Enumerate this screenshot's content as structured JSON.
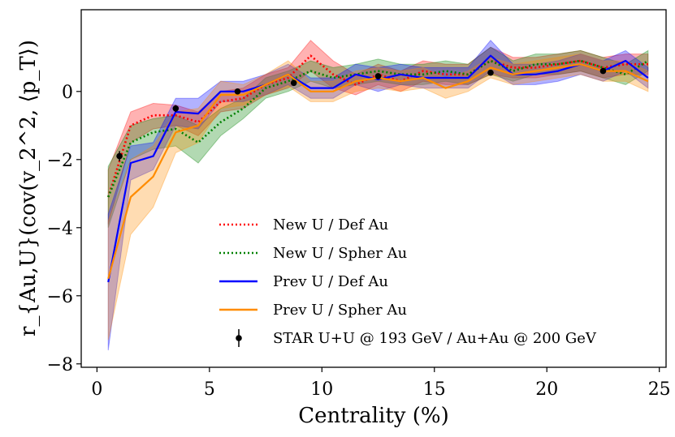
{
  "chart_data": {
    "type": "line",
    "title": "",
    "xlabel": "Centrality (%)",
    "ylabel": "r_{Au,U}(cov(v_2^2, ⟨p_T⟩)",
    "xlim": [
      -0.7,
      25.3
    ],
    "ylim": [
      -8.1,
      2.4
    ],
    "xticks": [
      0,
      5,
      10,
      15,
      20,
      25
    ],
    "xtick_labels": [
      "0",
      "5",
      "10",
      "15",
      "20",
      "25"
    ],
    "yticks": [
      -8,
      -6,
      -4,
      -2,
      0
    ],
    "ytick_labels": [
      "−8",
      "−6",
      "−4",
      "−2",
      "0"
    ],
    "grid": false,
    "legend_position": "bottom-center",
    "x": [
      0.5,
      1.5,
      2.5,
      3.5,
      4.5,
      5.5,
      6.5,
      7.5,
      8.5,
      9.5,
      10.5,
      11.5,
      12.5,
      13.5,
      14.5,
      15.5,
      16.5,
      17.5,
      18.5,
      19.5,
      20.5,
      21.5,
      22.5,
      23.5,
      24.5
    ],
    "series": [
      {
        "name": "New U / Def Au",
        "color": "#ff0000",
        "style": "dotted",
        "values": [
          -3.1,
          -1.0,
          -0.7,
          -0.7,
          -0.9,
          -0.3,
          -0.2,
          0.2,
          0.4,
          1.05,
          0.5,
          0.2,
          0.5,
          0.3,
          0.6,
          0.5,
          0.5,
          0.9,
          0.7,
          0.7,
          0.8,
          0.9,
          0.7,
          0.8,
          0.8
        ],
        "lower": [
          -3.9,
          -1.5,
          -1.1,
          -1.0,
          -1.3,
          -0.6,
          -0.5,
          -0.1,
          0.1,
          0.6,
          0.1,
          -0.1,
          0.2,
          0.0,
          0.3,
          0.2,
          0.2,
          0.5,
          0.4,
          0.4,
          0.5,
          0.6,
          0.4,
          0.5,
          0.5
        ],
        "upper": [
          -2.3,
          -0.6,
          -0.35,
          -0.4,
          -0.6,
          0.0,
          0.1,
          0.5,
          0.7,
          1.5,
          0.9,
          0.5,
          0.8,
          0.6,
          0.9,
          0.8,
          0.8,
          1.3,
          1.0,
          1.0,
          1.1,
          1.2,
          1.0,
          1.1,
          1.1
        ]
      },
      {
        "name": "New U / Spher Au",
        "color": "#008000",
        "style": "dotted",
        "values": [
          -3.1,
          -1.5,
          -1.2,
          -1.1,
          -1.5,
          -0.9,
          -0.5,
          0.1,
          0.3,
          0.6,
          0.4,
          0.5,
          0.6,
          0.5,
          0.5,
          0.6,
          0.5,
          0.9,
          0.6,
          0.8,
          0.8,
          0.9,
          0.7,
          0.5,
          0.9
        ],
        "lower": [
          -4.0,
          -2.0,
          -1.7,
          -1.6,
          -2.1,
          -1.3,
          -0.8,
          -0.2,
          0.0,
          0.3,
          0.1,
          0.2,
          0.3,
          0.2,
          0.2,
          0.3,
          0.2,
          0.5,
          0.3,
          0.5,
          0.5,
          0.6,
          0.4,
          0.2,
          0.6
        ],
        "upper": [
          -2.2,
          -1.0,
          -0.8,
          -0.7,
          -1.0,
          -0.5,
          -0.2,
          0.4,
          0.6,
          0.9,
          0.7,
          0.8,
          0.95,
          0.8,
          0.8,
          0.9,
          0.8,
          1.3,
          0.9,
          1.1,
          1.1,
          1.2,
          1.0,
          0.8,
          1.2
        ]
      },
      {
        "name": "Prev U / Def Au",
        "color": "#0000ff",
        "style": "solid",
        "values": [
          -5.6,
          -2.1,
          -1.9,
          -0.6,
          -0.65,
          0.0,
          0.0,
          0.2,
          0.5,
          0.1,
          0.1,
          0.5,
          0.35,
          0.5,
          0.4,
          0.4,
          0.4,
          1.05,
          0.5,
          0.5,
          0.6,
          0.8,
          0.6,
          0.9,
          0.4
        ],
        "lower": [
          -7.6,
          -2.6,
          -2.3,
          -1.0,
          -1.1,
          -0.3,
          -0.3,
          -0.1,
          0.2,
          -0.2,
          -0.2,
          0.2,
          0.0,
          0.2,
          0.1,
          0.1,
          0.1,
          0.6,
          0.2,
          0.2,
          0.3,
          0.5,
          0.3,
          0.6,
          0.1
        ],
        "upper": [
          -3.6,
          -1.6,
          -1.5,
          -0.2,
          -0.2,
          0.3,
          0.3,
          0.5,
          0.8,
          0.4,
          0.4,
          0.8,
          0.7,
          0.8,
          0.7,
          0.7,
          0.7,
          1.5,
          0.8,
          0.8,
          0.9,
          1.1,
          0.9,
          1.2,
          0.7
        ]
      },
      {
        "name": "Prev U / Spher Au",
        "color": "#ff8c00",
        "style": "solid",
        "values": [
          -5.5,
          -3.1,
          -2.5,
          -1.2,
          -1.0,
          -0.1,
          -0.1,
          0.2,
          0.5,
          0.0,
          0.0,
          0.3,
          0.4,
          0.3,
          0.4,
          0.1,
          0.3,
          0.7,
          0.5,
          0.6,
          0.7,
          0.8,
          0.6,
          0.6,
          0.3
        ],
        "lower": [
          -7.3,
          -4.2,
          -3.4,
          -1.8,
          -1.5,
          -0.5,
          -0.4,
          -0.1,
          0.15,
          -0.3,
          -0.3,
          0.0,
          0.1,
          0.0,
          0.1,
          -0.2,
          0.0,
          0.4,
          0.2,
          0.3,
          0.4,
          0.5,
          0.3,
          0.3,
          0.0
        ],
        "upper": [
          -3.8,
          -2.0,
          -1.6,
          -0.6,
          -0.5,
          0.3,
          0.2,
          0.5,
          0.9,
          0.3,
          0.3,
          0.6,
          0.7,
          0.6,
          0.7,
          0.4,
          0.6,
          1.0,
          0.8,
          0.9,
          1.0,
          1.1,
          0.9,
          0.9,
          0.6
        ]
      }
    ],
    "points": {
      "name": "STAR U+U @ 193 GeV / Au+Au @ 200 GeV",
      "color": "#000000",
      "x": [
        1.0,
        3.5,
        6.25,
        8.75,
        12.5,
        17.5,
        22.5
      ],
      "y": [
        -1.9,
        -0.5,
        0.0,
        0.25,
        0.45,
        0.55,
        0.6
      ],
      "yerr": [
        0.15,
        0.1,
        0.08,
        0.08,
        0.08,
        0.08,
        0.08
      ]
    }
  }
}
